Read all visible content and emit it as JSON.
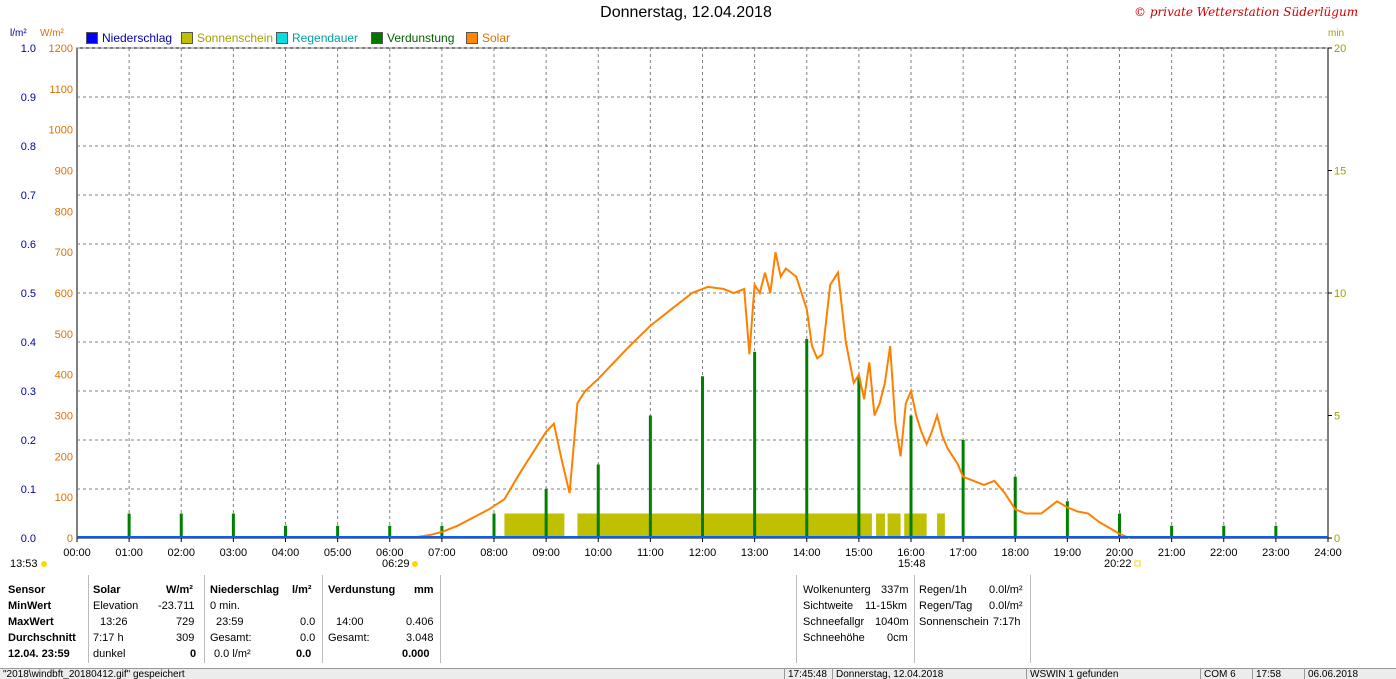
{
  "title": "Donnerstag, 12.04.2018",
  "copyright": "© private Wetterstation Süderlügum",
  "legend": [
    {
      "label": "Niederschlag",
      "color": "#0000ff",
      "text_color": "#0000aa"
    },
    {
      "label": "Sonnenschein",
      "color": "#c0c000",
      "text_color": "#a0a000"
    },
    {
      "label": "Regendauer",
      "color": "#00e0e0",
      "text_color": "#00a0a0"
    },
    {
      "label": "Verdunstung",
      "color": "#007800",
      "text_color": "#006000"
    },
    {
      "label": "Solar",
      "color": "#ff8800",
      "text_color": "#e07000"
    }
  ],
  "units": {
    "left1": "l/m²",
    "left2": "W/m²",
    "right": "min"
  },
  "colors": {
    "solar": "#ff8000",
    "sunshine": "#c0c000",
    "evaporation": "#008000",
    "precip": "#0000cc",
    "grid": "#808080"
  },
  "markers": {
    "left": "13:53",
    "sunrise": "06:29",
    "sunmid": "15:48",
    "sunset": "20:22"
  },
  "chart_data": {
    "type": "line",
    "title": "Donnerstag, 12.04.2018",
    "x_ticks": [
      "00:00",
      "01:00",
      "02:00",
      "03:00",
      "04:00",
      "05:00",
      "06:00",
      "07:00",
      "08:00",
      "09:00",
      "10:00",
      "11:00",
      "12:00",
      "13:00",
      "14:00",
      "15:00",
      "16:00",
      "17:00",
      "18:00",
      "19:00",
      "20:00",
      "21:00",
      "22:00",
      "23:00",
      "24:00"
    ],
    "y_precip_ticks": [
      "0.0",
      "0.1",
      "0.2",
      "0.3",
      "0.4",
      "0.5",
      "0.6",
      "0.7",
      "0.8",
      "0.9",
      "1.0"
    ],
    "y_solar_ticks": [
      "0",
      "100",
      "200",
      "300",
      "400",
      "500",
      "600",
      "700",
      "800",
      "900",
      "1000",
      "1100",
      "1200"
    ],
    "y_min_ticks": [
      "0",
      "5",
      "10",
      "15",
      "20"
    ],
    "ylim_precip": [
      0,
      1.0
    ],
    "ylim_solar": [
      0,
      1200
    ],
    "ylim_min": [
      0,
      20
    ],
    "grid": true,
    "series": [
      {
        "name": "Solar",
        "unit": "W/m²",
        "x": [
          6.5,
          6.8,
          7.0,
          7.3,
          7.6,
          7.9,
          8.2,
          8.5,
          8.8,
          9.0,
          9.15,
          9.3,
          9.45,
          9.6,
          9.75,
          10.0,
          10.3,
          10.6,
          11.0,
          11.4,
          11.8,
          12.1,
          12.4,
          12.6,
          12.8,
          12.9,
          13.0,
          13.1,
          13.2,
          13.3,
          13.4,
          13.5,
          13.6,
          13.7,
          13.8,
          13.9,
          14.0,
          14.1,
          14.2,
          14.3,
          14.45,
          14.6,
          14.75,
          14.9,
          15.0,
          15.1,
          15.2,
          15.3,
          15.4,
          15.5,
          15.6,
          15.7,
          15.8,
          15.9,
          16.0,
          16.1,
          16.2,
          16.3,
          16.4,
          16.5,
          16.6,
          16.7,
          16.8,
          16.9,
          17.0,
          17.2,
          17.4,
          17.6,
          17.8,
          18.0,
          18.2,
          18.5,
          18.8,
          19.0,
          19.2,
          19.4,
          19.6,
          19.8,
          20.0,
          20.2
        ],
        "values": [
          2,
          8,
          15,
          30,
          50,
          70,
          95,
          160,
          220,
          260,
          280,
          190,
          110,
          330,
          360,
          390,
          430,
          470,
          520,
          560,
          600,
          615,
          610,
          600,
          610,
          450,
          620,
          600,
          650,
          600,
          700,
          640,
          660,
          650,
          640,
          600,
          560,
          470,
          440,
          450,
          620,
          650,
          480,
          380,
          400,
          340,
          430,
          300,
          330,
          380,
          470,
          280,
          200,
          330,
          360,
          300,
          260,
          230,
          260,
          300,
          250,
          220,
          200,
          180,
          150,
          140,
          130,
          140,
          110,
          70,
          60,
          60,
          90,
          75,
          65,
          60,
          40,
          25,
          10,
          0
        ]
      },
      {
        "name": "Verdunstung",
        "unit": "mm",
        "x": [
          1,
          2,
          3,
          4,
          5,
          6,
          7,
          8,
          9,
          10,
          11,
          12,
          13,
          14,
          15,
          16,
          17,
          18,
          19,
          20,
          21,
          22,
          23
        ],
        "values": [
          0.05,
          0.05,
          0.05,
          0.025,
          0.025,
          0.025,
          0.025,
          0.05,
          0.1,
          0.15,
          0.25,
          0.33,
          0.38,
          0.406,
          0.33,
          0.25,
          0.2,
          0.125,
          0.075,
          0.05,
          0.025,
          0.025,
          0.025
        ]
      },
      {
        "name": "Sonnenschein",
        "unit": "min",
        "intervals": [
          [
            8.2,
            9.35
          ],
          [
            9.6,
            15.25
          ],
          [
            15.33,
            15.5
          ],
          [
            15.55,
            15.8
          ],
          [
            15.87,
            16.3
          ],
          [
            16.5,
            16.65
          ]
        ],
        "level": 1.0
      }
    ]
  },
  "stats": {
    "col_sensor": {
      "header": "Sensor",
      "r1": "MinWert",
      "r2": "MaxWert",
      "r3": "Durchschnitt",
      "r4": "12.04. 23:59"
    },
    "col_solar": {
      "header": "Solar",
      "unit": "W/m²",
      "r1a": "Elevation",
      "r1b": "-23.711",
      "r2a": "13:26",
      "r2b": "729",
      "r3a": "7:17 h",
      "r3b": "309",
      "r4a": "dunkel",
      "r4b": "0"
    },
    "col_precip": {
      "header": "Niederschlag",
      "unit": "l/m²",
      "r1a": "0 min.",
      "r2a": "23:59",
      "r2b": "0.0",
      "r3a": "Gesamt:",
      "r3b": "0.0",
      "r4a": "0.0 l/m²",
      "r4b": "0.0"
    },
    "col_evap": {
      "header": "Verdunstung",
      "unit": "mm",
      "r2a": "14:00",
      "r2b": "0.406",
      "r3a": "Gesamt:",
      "r3b": "3.048",
      "r4b": "0.000"
    },
    "col_cloud": {
      "r1a": "Wolkenunterg",
      "r1b": "337m",
      "r2a": "Sichtweite",
      "r2b": "11-15km",
      "r3a": "Schneefallgr",
      "r3b": "1040m",
      "r4a": "Schneehöhe",
      "r4b": "0cm"
    },
    "col_rain": {
      "r1a": "Regen/1h",
      "r1b": "0.0l/m²",
      "r2a": "Regen/Tag",
      "r2b": "0.0l/m²",
      "r3a": "Sonnenschein",
      "r3b": "7:17h"
    }
  },
  "statusbar": {
    "file": "\"2018\\windbft_20180412.gif\" gespeichert",
    "time1": "17:45:48",
    "date": "Donnerstag, 12.04.2018",
    "device": "WSWIN 1 gefunden",
    "port": "COM 6",
    "time2": "17:58",
    "date2": "06.06.2018"
  }
}
